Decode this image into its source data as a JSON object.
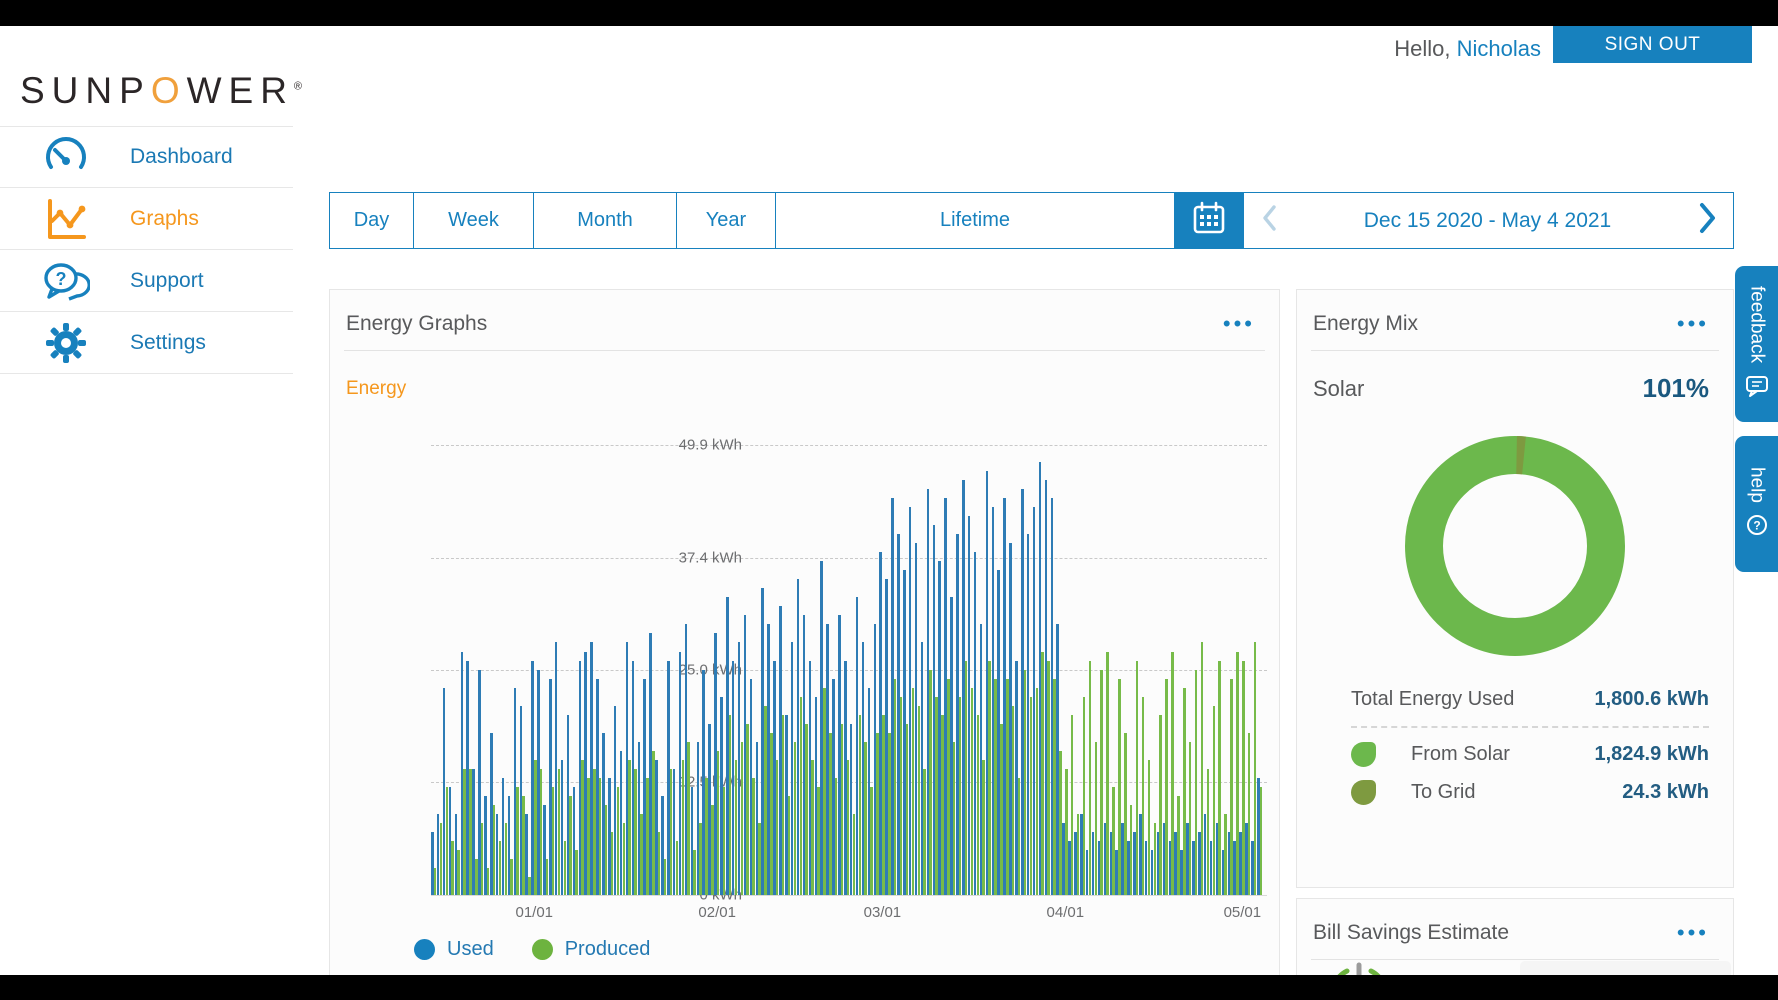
{
  "header": {
    "greeting_prefix": "Hello, ",
    "username": "Nicholas",
    "sign_out_label": "SIGN OUT",
    "brand": {
      "pre_o": "SUNP",
      "o": "O",
      "post_o": "WER",
      "registered": "®"
    }
  },
  "sidebar": {
    "items": [
      {
        "label": "Dashboard",
        "icon": "gauge-icon",
        "active": false
      },
      {
        "label": "Graphs",
        "icon": "line-chart-icon",
        "active": true
      },
      {
        "label": "Support",
        "icon": "chat-question-icon",
        "active": false
      },
      {
        "label": "Settings",
        "icon": "gear-icon",
        "active": false
      }
    ]
  },
  "toolbar": {
    "tabs": [
      "Day",
      "Week",
      "Month",
      "Year",
      "Lifetime"
    ],
    "calendar_icon": "calendar-icon",
    "prev_icon": "chevron-left-icon",
    "next_icon": "chevron-right-icon",
    "date_range": "Dec 15 2020 - May 4 2021"
  },
  "icons": {
    "ellipsis": "•••"
  },
  "energy_graphs": {
    "title": "Energy Graphs",
    "series_label": "Energy",
    "legend": [
      {
        "label": "Used",
        "color": "#1781be"
      },
      {
        "label": "Produced",
        "color": "#6db33f"
      }
    ]
  },
  "chart_data": {
    "type": "bar",
    "title": "Energy Graphs",
    "ylabel": "Energy",
    "ylim": [
      0,
      49.9
    ],
    "y_tick_labels": [
      "49.9 kWh",
      "37.4 kWh",
      "25.0 kWh",
      "12.5 kWh",
      "0 kWh"
    ],
    "y_tick_values": [
      49.9,
      37.4,
      25.0,
      12.5,
      0
    ],
    "x_tick_labels": [
      "01/01",
      "02/01",
      "03/01",
      "04/01",
      "05/01"
    ],
    "x_tick_day_index": [
      17,
      48,
      76,
      107,
      137
    ],
    "x_range": "Dec 15 2020 - May 4 2021",
    "grid": "dashed horizontal",
    "legend_position": "bottom-left",
    "bar_colors": {
      "used": "#2e7cb5",
      "produced": "#77bb49"
    },
    "series": [
      {
        "name": "Used",
        "values": [
          7,
          9,
          23,
          12,
          9,
          27,
          26,
          14,
          25,
          11,
          18,
          9,
          13,
          11,
          23,
          21,
          9,
          26,
          25,
          10,
          24,
          28,
          15,
          20,
          12,
          26,
          27,
          28,
          24,
          18,
          13,
          21,
          16,
          28,
          26,
          17,
          24,
          29,
          15,
          11,
          26,
          14,
          27,
          30,
          12,
          17,
          25,
          19,
          29,
          22,
          33,
          26,
          28,
          31,
          24,
          17,
          34,
          30,
          26,
          32,
          20,
          28,
          35,
          31,
          26,
          22,
          37,
          30,
          24,
          31,
          26,
          19,
          33,
          28,
          23,
          30,
          38,
          35,
          44,
          40,
          36,
          43,
          39,
          28,
          45,
          41,
          37,
          44,
          33,
          40,
          46,
          42,
          38,
          30,
          47,
          43,
          36,
          44,
          39,
          26,
          45,
          40,
          43,
          48,
          46,
          44,
          30,
          8,
          6,
          7,
          9,
          5,
          7,
          6,
          8,
          7,
          5,
          8,
          6,
          7,
          9,
          6,
          5,
          7,
          8,
          6,
          7,
          5,
          8,
          6,
          7,
          9,
          6,
          8,
          5,
          7,
          6,
          7,
          8,
          6,
          13
        ]
      },
      {
        "name": "Produced",
        "values": [
          3,
          8,
          12,
          6,
          5,
          14,
          14,
          4,
          8,
          3,
          10,
          6,
          8,
          4,
          12,
          11,
          2,
          15,
          14,
          4,
          12,
          14,
          6,
          11,
          5,
          15,
          13,
          14,
          13,
          10,
          7,
          12,
          8,
          15,
          14,
          9,
          13,
          16,
          7,
          4,
          14,
          6,
          15,
          17,
          5,
          8,
          13,
          10,
          16,
          12,
          20,
          15,
          17,
          19,
          13,
          8,
          21,
          18,
          15,
          20,
          11,
          17,
          22,
          19,
          15,
          12,
          23,
          18,
          13,
          19,
          15,
          9,
          20,
          17,
          12,
          18,
          20,
          18,
          24,
          22,
          19,
          23,
          21,
          14,
          25,
          22,
          20,
          24,
          17,
          22,
          26,
          23,
          20,
          15,
          26,
          24,
          19,
          24,
          21,
          13,
          25,
          22,
          23,
          27,
          26,
          24,
          16,
          14,
          20,
          9,
          22,
          26,
          17,
          25,
          27,
          12,
          24,
          18,
          10,
          26,
          22,
          15,
          8,
          20,
          24,
          27,
          11,
          23,
          17,
          25,
          28,
          14,
          21,
          26,
          9,
          24,
          27,
          26,
          18,
          28,
          12
        ]
      }
    ]
  },
  "energy_mix": {
    "title": "Energy Mix",
    "source_label": "Solar",
    "source_value": "101%",
    "donut": {
      "main_color": "#6cb84c",
      "sliver_color": "#7e9a40",
      "sliver_percent": 1.3
    },
    "total_label": "Total Energy Used",
    "total_value": "1,800.6 kWh",
    "rows": [
      {
        "label": "From Solar",
        "value": "1,824.9 kWh",
        "color": "#6cb84c"
      },
      {
        "label": "To Grid",
        "value": "24.3 kWh",
        "color": "#7e9a40"
      }
    ]
  },
  "bill_savings": {
    "title": "Bill Savings Estimate"
  },
  "side_tabs": [
    {
      "label": "feedback",
      "icon": "feedback-bubble-icon"
    },
    {
      "label": "help",
      "icon": "question-circle-icon"
    }
  ],
  "colors": {
    "accent_blue": "#1781be",
    "orange": "#f5971d",
    "gray_text": "#58595b",
    "value_navy": "#235d82",
    "bar_blue": "#2e7cb5",
    "bar_green": "#77bb49",
    "donut_green": "#6cb84c",
    "donut_olive": "#7e9a40"
  }
}
